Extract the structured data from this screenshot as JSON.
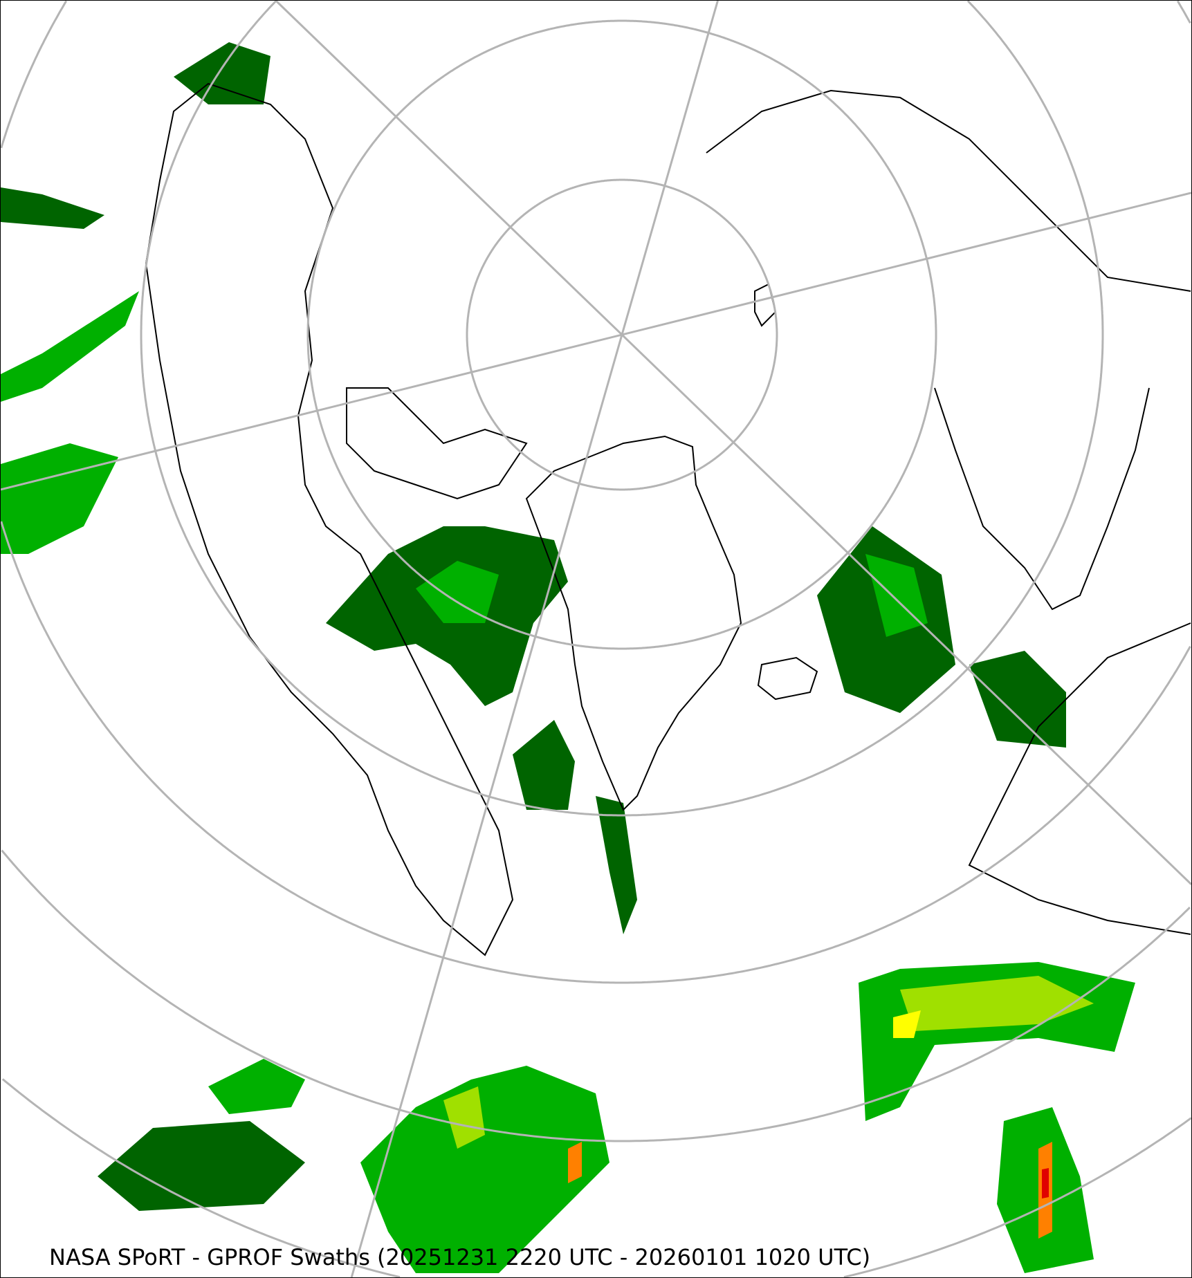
{
  "map": {
    "projection": "north-polar-stereographic",
    "caption": "NASA SPoRT - GPROF Swaths (20251231 2220 UTC - 20260101 1020 UTC)",
    "colors": {
      "graticule": "#b4b4b4",
      "coastline": "#000000",
      "precip_light": "#006400",
      "precip_moderate": "#00b000",
      "precip_heavy": "#a0e000",
      "precip_heavier": "#ffff00",
      "precip_intense": "#ff8000",
      "precip_extreme": "#e00000"
    }
  }
}
